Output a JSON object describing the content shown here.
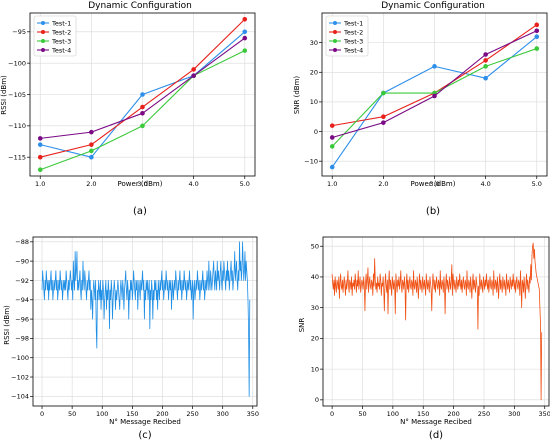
{
  "captions": [
    "(a)",
    "(b)",
    "(c)",
    "(d)"
  ],
  "colors": {
    "Test-1": "#2e8fea",
    "Test-2": "#e8201b",
    "Test-3": "#3ac93a",
    "Test-4": "#7a0a85",
    "rssi_msg": "#1f8fe6",
    "snr_msg": "#f05014"
  },
  "chart_data": [
    {
      "id": "a",
      "type": "line",
      "title": "Dynamic Configuration",
      "xlabel": "Power (dBm)",
      "ylabel": "RSSI (dBm)",
      "x": [
        1.0,
        2.0,
        3.0,
        4.0,
        5.0
      ],
      "xticks": [
        1.0,
        2.0,
        3.0,
        4.0,
        5.0
      ],
      "xlim": [
        0.8,
        5.2
      ],
      "yticks": [
        -115,
        -110,
        -105,
        -100,
        -95
      ],
      "ylim": [
        -118,
        -92
      ],
      "grid": true,
      "legend": "top-left",
      "series": [
        {
          "name": "Test-1",
          "values": [
            -113,
            -115,
            -105,
            -102,
            -95
          ]
        },
        {
          "name": "Test-2",
          "values": [
            -115,
            -113,
            -107,
            -101,
            -93
          ]
        },
        {
          "name": "Test-3",
          "values": [
            -117,
            -114,
            -110,
            -102,
            -98
          ]
        },
        {
          "name": "Test-4",
          "values": [
            -112,
            -111,
            -108,
            -102,
            -96
          ]
        }
      ]
    },
    {
      "id": "b",
      "type": "line",
      "title": "Dynamic Configuration",
      "xlabel": "Power (dBm)",
      "ylabel": "SNR (dBm)",
      "x": [
        1.0,
        2.0,
        3.0,
        4.0,
        5.0
      ],
      "xticks": [
        1.0,
        2.0,
        3.0,
        4.0,
        5.0
      ],
      "xlim": [
        0.8,
        5.2
      ],
      "yticks": [
        -10,
        0,
        10,
        20,
        30
      ],
      "ylim": [
        -15,
        40
      ],
      "grid": true,
      "legend": "top-left",
      "series": [
        {
          "name": "Test-1",
          "values": [
            -12,
            13,
            22,
            18,
            32
          ]
        },
        {
          "name": "Test-2",
          "values": [
            2,
            5,
            13,
            24,
            36
          ]
        },
        {
          "name": "Test-3",
          "values": [
            -5,
            13,
            13,
            22,
            28
          ]
        },
        {
          "name": "Test-4",
          "values": [
            -2,
            3,
            12,
            26,
            34
          ]
        }
      ]
    },
    {
      "id": "c",
      "type": "line",
      "title": "",
      "xlabel": "N° Message Recibed",
      "ylabel": "RSSI (dBm)",
      "xticks": [
        0,
        50,
        100,
        150,
        200,
        250,
        300,
        350
      ],
      "xlim": [
        -15,
        357
      ],
      "yticks": [
        -104,
        -102,
        -100,
        -98,
        -96,
        -94,
        -92,
        -90,
        -88
      ],
      "ylim": [
        -105,
        -87.5
      ],
      "grid": true,
      "series": [
        {
          "name": "",
          "color_key": "rssi_msg",
          "values": [
            -93,
            -91,
            -92,
            -93,
            -94,
            -92,
            -93,
            -91,
            -92,
            -93,
            -92,
            -94,
            -92,
            -93,
            -92,
            -91,
            -93,
            -92,
            -94,
            -93,
            -92,
            -93,
            -92,
            -91,
            -93,
            -92,
            -94,
            -93,
            -92,
            -93,
            -91,
            -92,
            -93,
            -92,
            -94,
            -93,
            -92,
            -93,
            -92,
            -93,
            -91,
            -92,
            -93,
            -94,
            -92,
            -93,
            -92,
            -91,
            -92,
            -93,
            -92,
            -94,
            -90,
            -92,
            -93,
            -89,
            -92,
            -91,
            -89,
            -93,
            -92,
            -93,
            -92,
            -91,
            -93,
            -94,
            -92,
            -93,
            -90,
            -92,
            -93,
            -91,
            -92,
            -93,
            -94,
            -92,
            -93,
            -92,
            -91,
            -93,
            -92,
            -95,
            -93,
            -94,
            -96,
            -93,
            -92,
            -93,
            -94,
            -92,
            -97,
            -99,
            -93,
            -94,
            -92,
            -93,
            -94,
            -92,
            -95,
            -93,
            -94,
            -92,
            -93,
            -96,
            -94,
            -93,
            -92,
            -95,
            -93,
            -94,
            -92,
            -93,
            -97,
            -93,
            -94,
            -92,
            -93,
            -96,
            -94,
            -93,
            -92,
            -93,
            -95,
            -93,
            -94,
            -93,
            -92,
            -93,
            -94,
            -95,
            -93,
            -92,
            -93,
            -94,
            -92,
            -93,
            -95,
            -93,
            -92,
            -91,
            -93,
            -94,
            -92,
            -93,
            -96,
            -93,
            -94,
            -92,
            -93,
            -92,
            -94,
            -93,
            -91,
            -92,
            -93,
            -94,
            -92,
            -93,
            -92,
            -95,
            -93,
            -92,
            -93,
            -94,
            -92,
            -93,
            -92,
            -91,
            -93,
            -92,
            -96,
            -93,
            -94,
            -92,
            -93,
            -92,
            -94,
            -93,
            -92,
            -97,
            -93,
            -94,
            -92,
            -93,
            -96,
            -93,
            -94,
            -92,
            -93,
            -92,
            -94,
            -93,
            -95,
            -92,
            -93,
            -94,
            -92,
            -93,
            -92,
            -91,
            -93,
            -92,
            -94,
            -93,
            -92,
            -93,
            -91,
            -92,
            -93,
            -92,
            -94,
            -93,
            -92,
            -93,
            -92,
            -95,
            -93,
            -92,
            -94,
            -93,
            -92,
            -93,
            -91,
            -92,
            -93,
            -94,
            -92,
            -93,
            -92,
            -91,
            -93,
            -92,
            -94,
            -93,
            -92,
            -93,
            -91,
            -92,
            -93,
            -92,
            -94,
            -93,
            -92,
            -93,
            -92,
            -91,
            -93,
            -92,
            -94,
            -93,
            -92,
            -96,
            -93,
            -92,
            -94,
            -93,
            -92,
            -93,
            -91,
            -92,
            -93,
            -92,
            -94,
            -93,
            -92,
            -93,
            -92,
            -91,
            -93,
            -92,
            -94,
            -93,
            -92,
            -93,
            -91,
            -92,
            -93,
            -90,
            -92,
            -93,
            -91,
            -92,
            -93,
            -92,
            -91,
            -90,
            -92,
            -93,
            -91,
            -92,
            -93,
            -90,
            -92,
            -91,
            -92,
            -93,
            -91,
            -90,
            -92,
            -93,
            -91,
            -92,
            -90,
            -91,
            -92,
            -93,
            -91,
            -92,
            -90,
            -92,
            -91,
            -93,
            -92,
            -91,
            -90,
            -92,
            -91,
            -93,
            -92,
            -91,
            -89,
            -92,
            -91,
            -90,
            -92,
            -93,
            -91,
            -92,
            -88,
            -91,
            -90,
            -92,
            -91,
            -88,
            -90,
            -92,
            -91,
            -89,
            -92,
            -90,
            -91,
            -92,
            -94,
            -97,
            -104,
            -94
          ]
        }
      ]
    },
    {
      "id": "d",
      "type": "line",
      "title": "",
      "xlabel": "N° Message Recibed",
      "ylabel": "SNR",
      "xticks": [
        0,
        50,
        100,
        150,
        200,
        250,
        300,
        350
      ],
      "xlim": [
        -15,
        357
      ],
      "yticks": [
        0,
        10,
        20,
        30,
        40,
        50
      ],
      "ylim": [
        -2,
        53
      ],
      "grid": true,
      "series": [
        {
          "name": "",
          "color_key": "snr_msg",
          "values": [
            41,
            38,
            36,
            39,
            34,
            40,
            37,
            35,
            39,
            38,
            36,
            40,
            33,
            38,
            41,
            37,
            36,
            39,
            35,
            38,
            40,
            37,
            34,
            39,
            36,
            38,
            42,
            37,
            35,
            39,
            38,
            36,
            40,
            34,
            38,
            37,
            39,
            36,
            41,
            38,
            35,
            39,
            37,
            42,
            36,
            38,
            40,
            35,
            37,
            39,
            38,
            36,
            40,
            37,
            29,
            38,
            41,
            36,
            39,
            43,
            35,
            38,
            40,
            37,
            36,
            39,
            38,
            34,
            41,
            37,
            46,
            39,
            36,
            38,
            35,
            40,
            37,
            38,
            36,
            41,
            39,
            34,
            38,
            37,
            40,
            36,
            29,
            38,
            41,
            37,
            35,
            39,
            28,
            38,
            42,
            36,
            39,
            37,
            34,
            40,
            38,
            36,
            39,
            37,
            28,
            41,
            38,
            35,
            39,
            37,
            40,
            36,
            38,
            42,
            37,
            35,
            39,
            38,
            36,
            40,
            37,
            26,
            38,
            41,
            36,
            39,
            35,
            38,
            40,
            37,
            36,
            39,
            38,
            34,
            42,
            37,
            36,
            39,
            38,
            35,
            40,
            37,
            33,
            38,
            41,
            36,
            39,
            37,
            35,
            40,
            38,
            36,
            39,
            37,
            34,
            41,
            38,
            36,
            39,
            37,
            35,
            40,
            38,
            36,
            29,
            37,
            41,
            38,
            36,
            39,
            35,
            38,
            40,
            37,
            36,
            39,
            38,
            34,
            42,
            37,
            36,
            39,
            38,
            35,
            40,
            37,
            28,
            38,
            41,
            36,
            39,
            37,
            35,
            40,
            38,
            36,
            39,
            44,
            34,
            41,
            38,
            36,
            39,
            37,
            35,
            40,
            38,
            36,
            39,
            37,
            41,
            38,
            36,
            39,
            35,
            38,
            40,
            37,
            36,
            39,
            38,
            34,
            42,
            37,
            36,
            39,
            38,
            35,
            40,
            37,
            33,
            38,
            41,
            36,
            39,
            37,
            35,
            40,
            38,
            36,
            23,
            37,
            34,
            41,
            38,
            36,
            39,
            37,
            35,
            40,
            38,
            36,
            39,
            37,
            41,
            38,
            36,
            39,
            35,
            38,
            40,
            37,
            36,
            39,
            38,
            34,
            42,
            37,
            36,
            39,
            38,
            35,
            40,
            37,
            33,
            38,
            41,
            36,
            39,
            37,
            35,
            40,
            38,
            36,
            39,
            37,
            34,
            41,
            38,
            36,
            39,
            37,
            35,
            40,
            38,
            36,
            39,
            37,
            41,
            38,
            36,
            39,
            35,
            38,
            40,
            37,
            36,
            39,
            38,
            34,
            42,
            37,
            30,
            39,
            38,
            35,
            40,
            37,
            33,
            38,
            41,
            36,
            39,
            37,
            35,
            40,
            38,
            44,
            39,
            47,
            50,
            51,
            46,
            49,
            45,
            43,
            41,
            40,
            39,
            38,
            37,
            36,
            30,
            25,
            0,
            22
          ]
        }
      ]
    }
  ]
}
